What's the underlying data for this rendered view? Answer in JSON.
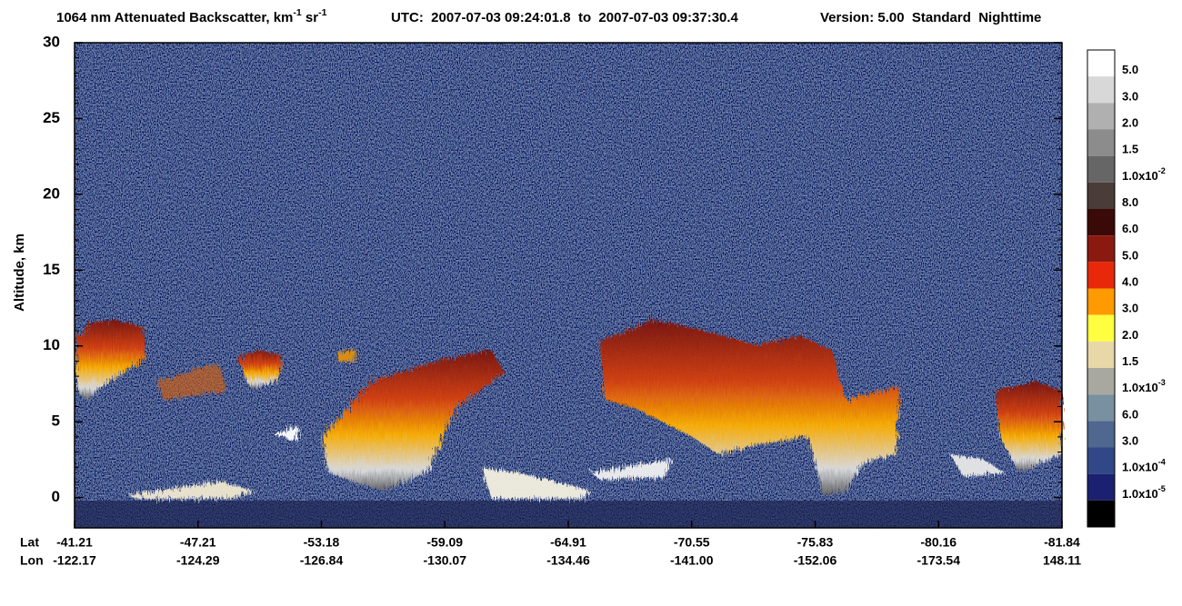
{
  "chart_data": {
    "type": "curtain",
    "title": [
      {
        "text": "1064 nm Attenuated Backscatter, km"
      },
      {
        "sup": "-1"
      },
      {
        "text": " sr"
      },
      {
        "sup": "-1"
      }
    ],
    "time_range": "UTC:  2007-07-03 09:24:01.8  to  2007-07-03 09:37:30.4",
    "version": "Version: 5.00  Standard  Nighttime",
    "y_label": "Altitude, km",
    "ylim": [
      -2,
      30
    ],
    "yticks": [
      0,
      5,
      10,
      15,
      20,
      25,
      30
    ],
    "x_row_labels": [
      "Lat",
      "Lon"
    ],
    "x_ticks": [
      {
        "lat": "-41.21",
        "lon": "-122.17"
      },
      {
        "lat": "-47.21",
        "lon": "-124.29"
      },
      {
        "lat": "-53.18",
        "lon": "-126.84"
      },
      {
        "lat": "-59.09",
        "lon": "-130.07"
      },
      {
        "lat": "-64.91",
        "lon": "-134.46"
      },
      {
        "lat": "-70.55",
        "lon": "-141.00"
      },
      {
        "lat": "-75.83",
        "lon": "-152.06"
      },
      {
        "lat": "-80.16",
        "lon": "-173.54"
      },
      {
        "lat": "-81.84",
        "lon": "148.11"
      }
    ],
    "colorbar": {
      "colors": [
        "#ffffff",
        "#d8d8d8",
        "#b0b0b0",
        "#8c8c8c",
        "#666666",
        "#4a3c38",
        "#3a0a08",
        "#8a1a10",
        "#e8280a",
        "#ff9a00",
        "#ffff40",
        "#e8d8a8",
        "#a8a8a0",
        "#7890a0",
        "#506890",
        "#304888",
        "#1c2070",
        "#000000"
      ],
      "labels": [
        [
          {
            "text": "5.0"
          }
        ],
        [
          {
            "text": "3.0"
          }
        ],
        [
          {
            "text": "2.0"
          }
        ],
        [
          {
            "text": "1.5"
          }
        ],
        [
          {
            "text": "1.0x10"
          },
          {
            "sup": "-2"
          }
        ],
        [
          {
            "text": "8.0"
          }
        ],
        [
          {
            "text": "6.0"
          }
        ],
        [
          {
            "text": "5.0"
          }
        ],
        [
          {
            "text": "4.0"
          }
        ],
        [
          {
            "text": "3.0"
          }
        ],
        [
          {
            "text": "2.0"
          }
        ],
        [
          {
            "text": "1.5"
          }
        ],
        [
          {
            "text": "1.0x10"
          },
          {
            "sup": "-3"
          }
        ],
        [
          {
            "text": "6.0"
          }
        ],
        [
          {
            "text": "3.0"
          }
        ],
        [
          {
            "text": "1.0x10"
          },
          {
            "sup": "-4"
          }
        ],
        [
          {
            "text": "1.0x10"
          },
          {
            "sup": "-5"
          }
        ]
      ]
    }
  }
}
